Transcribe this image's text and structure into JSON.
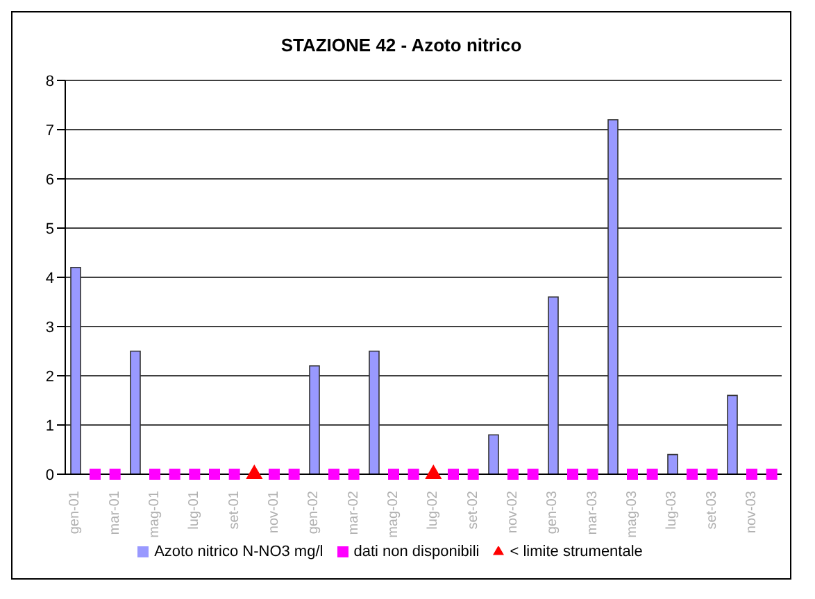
{
  "chart_data": {
    "type": "bar",
    "title": "STAZIONE 42 - Azoto nitrico",
    "categories": [
      "gen-01",
      null,
      "mar-01",
      null,
      "mag-01",
      null,
      "lug-01",
      null,
      "set-01",
      null,
      "nov-01",
      null,
      "gen-02",
      null,
      "mar-02",
      null,
      "mag-02",
      null,
      "lug-02",
      null,
      "set-02",
      null,
      "nov-02",
      null,
      "gen-03",
      null,
      "mar-03",
      null,
      "mag-03",
      null,
      "lug-03",
      null,
      "set-03",
      null,
      "nov-03",
      null
    ],
    "series": [
      {
        "name": "Azoto nitrico N-NO3 mg/l",
        "color": "#9999ff",
        "values": [
          4.2,
          null,
          null,
          2.5,
          null,
          null,
          null,
          null,
          null,
          null,
          null,
          null,
          2.2,
          null,
          null,
          2.5,
          null,
          null,
          null,
          null,
          null,
          0.8,
          null,
          null,
          3.6,
          null,
          null,
          7.2,
          null,
          null,
          0.4,
          null,
          null,
          1.6,
          null,
          null
        ]
      },
      {
        "name": "dati non disponibili",
        "type": "scatter",
        "marker": "square",
        "color": "#ff00ff",
        "values": [
          null,
          0,
          0,
          null,
          0,
          0,
          0,
          0,
          0,
          null,
          0,
          0,
          null,
          0,
          0,
          null,
          0,
          0,
          null,
          0,
          0,
          null,
          0,
          0,
          null,
          0,
          0,
          null,
          0,
          0,
          null,
          0,
          0,
          null,
          0,
          0
        ]
      },
      {
        "name": "< limite strumentale",
        "type": "scatter",
        "marker": "triangle",
        "color": "#ff0000",
        "values": [
          null,
          null,
          null,
          null,
          null,
          null,
          null,
          null,
          null,
          0,
          null,
          null,
          null,
          null,
          null,
          null,
          null,
          null,
          0,
          null,
          null,
          null,
          null,
          null,
          null,
          null,
          null,
          null,
          null,
          null,
          null,
          null,
          null,
          null,
          null,
          null
        ]
      }
    ],
    "ylim": [
      0,
      8
    ],
    "yticks": [
      0,
      1,
      2,
      3,
      4,
      5,
      6,
      7,
      8
    ],
    "grid": "y",
    "legend": "bottom"
  }
}
